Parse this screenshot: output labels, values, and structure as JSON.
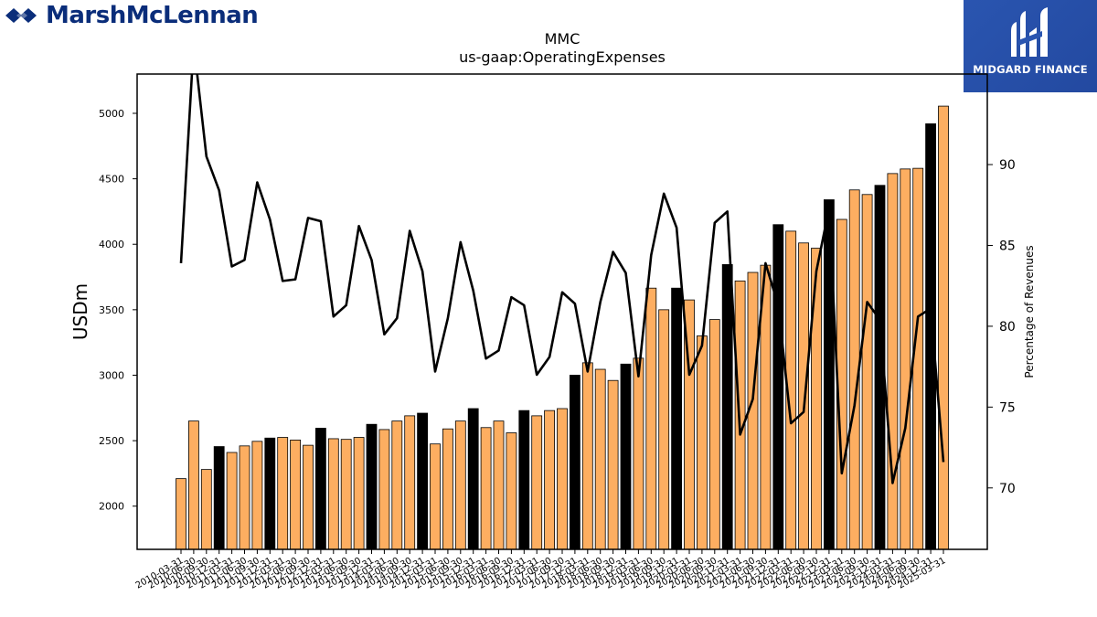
{
  "brand_left": {
    "name": "MarshMcLennan",
    "logo_icon": "marsh-mclennan-logo-icon",
    "color": "#0a2d7a"
  },
  "brand_right": {
    "name": "MIDGARD FINANCE",
    "logo_icon": "midgard-logo-icon",
    "color": "#2a55b0"
  },
  "chart_data": {
    "type": "bar",
    "title": "MMC",
    "subtitle": "us-gaap:OperatingExpenses",
    "ylabel": "USDm",
    "y2label": "Percentage of Revenues",
    "ylim": [
      1670,
      5300
    ],
    "y2lim": [
      66.2,
      95.6
    ],
    "yticks": [
      2000,
      2500,
      3000,
      3500,
      4000,
      4500,
      5000
    ],
    "y2ticks": [
      70,
      75,
      80,
      85,
      90
    ],
    "colors": {
      "quarter": "#fdae61",
      "year_end": "#000000",
      "line": "#000000"
    },
    "categories": [
      "2010-03-31",
      "2010-06-30",
      "2010-09-30",
      "2010-12-31",
      "2011-03-31",
      "2011-06-30",
      "2011-09-30",
      "2011-12-31",
      "2012-03-31",
      "2012-06-30",
      "2012-09-30",
      "2012-12-31",
      "2013-03-31",
      "2013-06-30",
      "2013-09-30",
      "2013-12-31",
      "2014-03-31",
      "2014-06-30",
      "2014-09-30",
      "2014-12-31",
      "2015-03-31",
      "2015-06-30",
      "2015-09-30",
      "2015-12-31",
      "2016-03-31",
      "2016-06-30",
      "2016-09-30",
      "2016-12-31",
      "2017-03-31",
      "2017-06-30",
      "2017-09-30",
      "2017-12-31",
      "2018-03-31",
      "2018-06-30",
      "2018-09-30",
      "2018-12-31",
      "2019-03-31",
      "2019-06-30",
      "2019-09-30",
      "2019-12-31",
      "2020-03-31",
      "2020-06-30",
      "2020-09-30",
      "2020-12-31",
      "2021-03-31",
      "2021-06-30",
      "2021-09-30",
      "2021-12-31",
      "2022-03-31",
      "2022-06-30",
      "2022-09-30",
      "2022-12-31",
      "2023-03-31",
      "2023-06-30",
      "2023-09-30",
      "2023-12-31",
      "2024-03-31",
      "2024-06-30",
      "2024-09-30",
      "2024-12-31",
      "2025-03-31"
    ],
    "tick_labels": [
      "2010-03-31",
      "2010-06-30",
      "2010-09-30",
      "2010-12-31",
      "2011-03-31",
      "2011-06-30",
      "2011-09-30",
      "2011-12-31",
      "2012-03-31",
      "2012-06-30",
      "2012-09-30",
      "2012-12-31",
      "2013-03-31",
      "2013-06-30",
      "2013-09-30",
      "2013-12-31",
      "2014-03-31",
      "2014-06-30",
      "2014-09-30",
      "2014-12-31",
      "2015-03-31",
      "2015-06-30",
      "2015-09-30",
      "2015-12-31",
      "2016-03-31",
      "2016-06-30",
      "2016-09-30",
      "2016-12-31",
      "2017-03-31",
      "2017-06-30",
      "2017-09-30",
      "2017-12-31",
      "2018-03-31",
      "2018-06-30",
      "2018-09-30",
      "2018-12-31",
      "2019-03-31",
      "2019-06-30",
      "2019-09-30",
      "2019-12-31",
      "2020-03-31",
      "2020-06-30",
      "2020-09-30",
      "2020-12-31",
      "2021-03-31",
      "2021-06-30",
      "2021-09-30",
      "2021-12-31",
      "2022-03-31",
      "2022-06-30",
      "2022-09-30",
      "2022-12-31",
      "2023-03-31",
      "2023-06-30",
      "2023-09-30",
      "2023-12-31",
      "2024-03-31",
      "2024-06-30",
      "2024-09-30",
      "2024-12-31",
      "2025-03-31"
    ],
    "series": [
      {
        "type": "bar",
        "values": [
          2210,
          2650,
          2280,
          2455,
          2410,
          2460,
          2495,
          2520,
          2525,
          2505,
          2465,
          2595,
          2515,
          2510,
          2525,
          2625,
          2585,
          2650,
          2690,
          2710,
          2475,
          2590,
          2650,
          2745,
          2600,
          2650,
          2560,
          2730,
          2690,
          2730,
          2745,
          3000,
          3095,
          3045,
          2960,
          3085,
          3130,
          3665,
          3500,
          3665,
          3575,
          3300,
          3425,
          3845,
          3720,
          3785,
          3840,
          4150,
          4100,
          4010,
          3970,
          4340,
          4190,
          4415,
          4380,
          4450,
          4540,
          4575,
          4580,
          4920,
          5055
        ]
      },
      {
        "type": "line",
        "axis": "right",
        "values": [
          83.9,
          97.5,
          90.5,
          88.4,
          83.7,
          84.1,
          88.9,
          86.6,
          82.8,
          82.9,
          86.7,
          86.5,
          80.6,
          81.3,
          86.2,
          84.1,
          79.5,
          80.5,
          85.9,
          83.4,
          77.2,
          80.5,
          85.2,
          82.2,
          78.0,
          78.5,
          81.8,
          81.3,
          77.0,
          78.1,
          82.1,
          81.4,
          77.2,
          81.5,
          84.6,
          83.3,
          76.9,
          84.4,
          88.2,
          86.1,
          77.0,
          78.8,
          86.4,
          87.1,
          73.3,
          75.5,
          83.9,
          81.3,
          74.0,
          74.7,
          83.4,
          87.3,
          70.9,
          75.1,
          81.5,
          80.4,
          70.3,
          73.7,
          80.6,
          81.1,
          71.6
        ]
      }
    ]
  }
}
